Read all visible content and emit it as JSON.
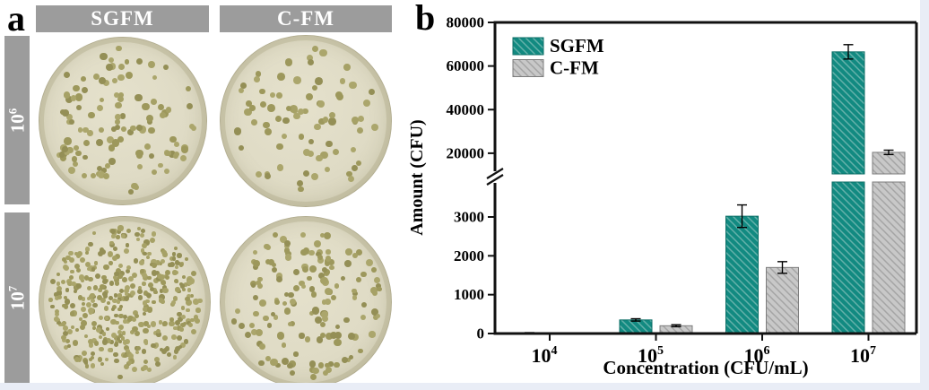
{
  "canvas": {
    "page_bg": "#e9edf6",
    "figure_bg": "#ffffff"
  },
  "panel_a": {
    "label": "a",
    "header_bg": "#9c9c9c",
    "column_headers": [
      {
        "label": "SGFM"
      },
      {
        "label": "C-FM"
      }
    ],
    "row_labels": [
      "10⁶",
      "10⁷"
    ],
    "dish_style": {
      "agar_color": "#dfdbc5",
      "agar_center": "#e5e1cc",
      "rim_color": "#bcb799",
      "colony_colors": [
        "#a6a166",
        "#9d985c",
        "#aba66c",
        "#948f56"
      ]
    },
    "dishes": [
      {
        "id": "sgfm-1e6",
        "column": "SGFM",
        "row": "10⁶",
        "colony_count": 118,
        "seed": 11,
        "size_min": 5.5,
        "size_max": 8.5
      },
      {
        "id": "cfm-1e6",
        "column": "C-FM",
        "row": "10⁶",
        "colony_count": 78,
        "seed": 22,
        "size_min": 6,
        "size_max": 9
      },
      {
        "id": "sgfm-1e7",
        "column": "SGFM",
        "row": "10⁷",
        "colony_count": 430,
        "seed": 33,
        "size_min": 4,
        "size_max": 6.5
      },
      {
        "id": "cfm-1e7",
        "column": "C-FM",
        "row": "10⁷",
        "colony_count": 158,
        "seed": 44,
        "size_min": 5,
        "size_max": 8.5
      }
    ]
  },
  "panel_b": {
    "label": "b"
  },
  "chart_data": {
    "type": "bar",
    "title": "",
    "xlabel": "Concentration (CFU/mL)",
    "ylabel": "Amount (CFU)",
    "categories": [
      "10⁴",
      "10⁵",
      "10⁶",
      "10⁷"
    ],
    "x_values": [
      10000,
      100000,
      1000000,
      10000000
    ],
    "series": [
      {
        "name": "SGFM",
        "fill": "#128a81",
        "hatch": "#65b1aa",
        "edge": "#0c6e66",
        "values": [
          15,
          350,
          3020,
          66500
        ],
        "errors": [
          8,
          30,
          290,
          3300
        ]
      },
      {
        "name": "C-FM",
        "fill": "#c8c8c8",
        "hatch": "#a4a4a4",
        "edge": "#7d7d7d",
        "values": [
          5,
          200,
          1700,
          20400
        ],
        "errors": [
          4,
          25,
          150,
          1000
        ]
      }
    ],
    "y_axis": {
      "broken": true,
      "lower_ticks": [
        0,
        1000,
        2000,
        3000
      ],
      "upper_ticks": [
        20000,
        40000,
        60000,
        80000
      ],
      "lower_range": [
        0,
        3900
      ],
      "upper_range": [
        10500,
        80000
      ]
    },
    "legend_position": "top-left",
    "grid": false,
    "hatch_direction": "\\"
  }
}
